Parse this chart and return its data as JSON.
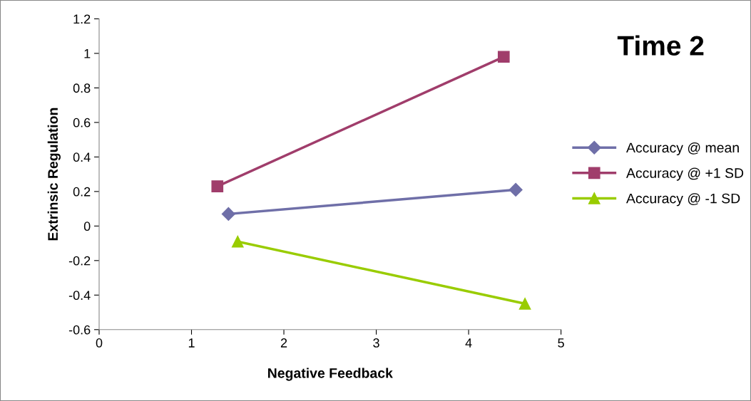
{
  "chart_data": {
    "type": "line",
    "title": "Time 2",
    "xlabel": "Negative Feedback",
    "ylabel": "Extrinsic Regulation",
    "xlim": [
      0,
      5
    ],
    "xticks": [
      0,
      1,
      2,
      3,
      4,
      5
    ],
    "ylim": [
      -0.6,
      1.2
    ],
    "yticks": [
      -0.6,
      -0.4,
      -0.2,
      0,
      0.2,
      0.4,
      0.6,
      0.8,
      1,
      1.2
    ],
    "grid": false,
    "legend": "right",
    "line_style": "solid",
    "series": [
      {
        "name": "Accuracy @ mean",
        "color": "#6f6fa8",
        "marker": "diamond",
        "x": [
          1.4,
          4.51
        ],
        "values": [
          0.07,
          0.21
        ]
      },
      {
        "name": "Accuracy @ +1 SD",
        "color": "#a03d6b",
        "marker": "square",
        "x": [
          1.28,
          4.38
        ],
        "values": [
          0.23,
          0.98
        ]
      },
      {
        "name": "Accuracy @ -1 SD",
        "color": "#99cc00",
        "marker": "triangle",
        "x": [
          1.5,
          4.61
        ],
        "values": [
          -0.09,
          -0.45
        ]
      }
    ]
  }
}
